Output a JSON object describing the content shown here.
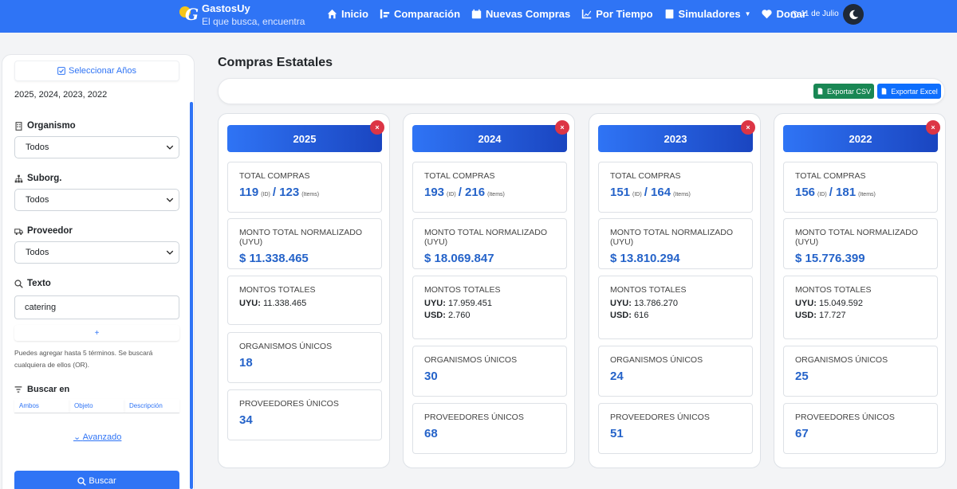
{
  "brand": {
    "name": "GastosUy",
    "tagline": "El que busca, encuentra"
  },
  "nav": [
    {
      "label": "Inicio",
      "icon": "home-icon"
    },
    {
      "label": "Comparación",
      "icon": "compare-icon"
    },
    {
      "label": "Nuevas Compras",
      "icon": "calendar-icon"
    },
    {
      "label": "Por Tiempo",
      "icon": "chart-icon"
    },
    {
      "label": "Simuladores",
      "icon": "calculator-icon",
      "dropdown": true
    },
    {
      "label": "Donar",
      "icon": "heart-icon"
    }
  ],
  "date": "11 de Julio",
  "sidebar": {
    "select_years_label": "Seleccionar Años",
    "years_selected": "2025, 2024, 2023, 2022",
    "organismo_label": "Organismo",
    "organismo_value": "Todos",
    "suborg_label": "Suborg.",
    "suborg_value": "Todos",
    "proveedor_label": "Proveedor",
    "proveedor_value": "Todos",
    "texto_label": "Texto",
    "texto_value": "catering",
    "add_label": "+",
    "hint": "Puedes agregar hasta 5 términos. Se buscará cualquiera de ellos (OR).",
    "buscar_en_label": "Buscar en",
    "buscar_en_options": [
      "Ambos",
      "Objeto",
      "Descripción"
    ],
    "advanced_label": "Avanzado",
    "search_button": "Buscar"
  },
  "main": {
    "title": "Compras Estatales",
    "export_csv": "Exportar CSV",
    "export_excel": "Exportar Excel",
    "labels": {
      "total": "TOTAL COMPRAS",
      "monto_norm": "MONTO TOTAL NORMALIZADO (UYU)",
      "montos": "MONTOS TOTALES",
      "organismos": "ORGANISMOS ÚNICOS",
      "proveedores": "PROVEEDORES ÚNICOS",
      "id_unit": "(ID)",
      "items_unit": "(Items)",
      "uyu": "UYU:",
      "usd": "USD:",
      "close": "×"
    },
    "years": [
      {
        "year": "2025",
        "ids": "119",
        "items": "/ 123",
        "monto_norm": "$ 11.338.465",
        "uyu": "11.338.465",
        "usd": null,
        "organismos": "18",
        "proveedores": "34"
      },
      {
        "year": "2024",
        "ids": "193",
        "items": "/ 216",
        "monto_norm": "$ 18.069.847",
        "uyu": "17.959.451",
        "usd": "2.760",
        "organismos": "30",
        "proveedores": "68"
      },
      {
        "year": "2023",
        "ids": "151",
        "items": "/ 164",
        "monto_norm": "$ 13.810.294",
        "uyu": "13.786.270",
        "usd": "616",
        "organismos": "24",
        "proveedores": "51"
      },
      {
        "year": "2022",
        "ids": "156",
        "items": "/ 181",
        "monto_norm": "$ 15.776.399",
        "uyu": "15.049.592",
        "usd": "17.727",
        "organismos": "25",
        "proveedores": "67"
      }
    ]
  }
}
